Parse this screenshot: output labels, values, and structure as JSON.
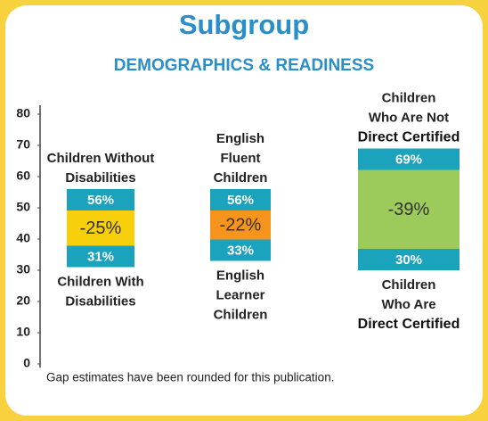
{
  "chart_data": {
    "type": "gap",
    "title": "Subgroup",
    "subtitle": "DEMOGRAPHICS & READINESS",
    "note": "Gap estimates have been rounded for this publication.",
    "ylim": [
      0,
      80
    ],
    "yticks": [
      0,
      10,
      20,
      30,
      40,
      50,
      60,
      70,
      80
    ],
    "band_color": "#1ba3bd",
    "top_labels": [
      [
        "Children Without",
        "Disabilities"
      ],
      [
        "English",
        "Fluent",
        "Children"
      ],
      [
        "Children",
        "Who Are Not",
        "Direct Certified"
      ]
    ],
    "bottom_labels": [
      [
        "Children With",
        "Disabilities"
      ],
      [
        "English",
        "Learner",
        "Children"
      ],
      [
        "Children",
        "Who Are",
        "Direct Certified"
      ]
    ],
    "high": {
      "values": [
        56,
        56,
        69
      ],
      "value_labels": [
        "56%",
        "56%",
        "69%"
      ]
    },
    "low": {
      "values": [
        31,
        33,
        30
      ],
      "value_labels": [
        "31%",
        "33%",
        "30%"
      ]
    },
    "gap": {
      "values": [
        -25,
        -22,
        -39
      ],
      "value_labels": [
        "-25%",
        "-22%",
        "-39%"
      ],
      "colors": [
        "#f7cf0a",
        "#f7941d",
        "#9dcb5b"
      ]
    }
  }
}
